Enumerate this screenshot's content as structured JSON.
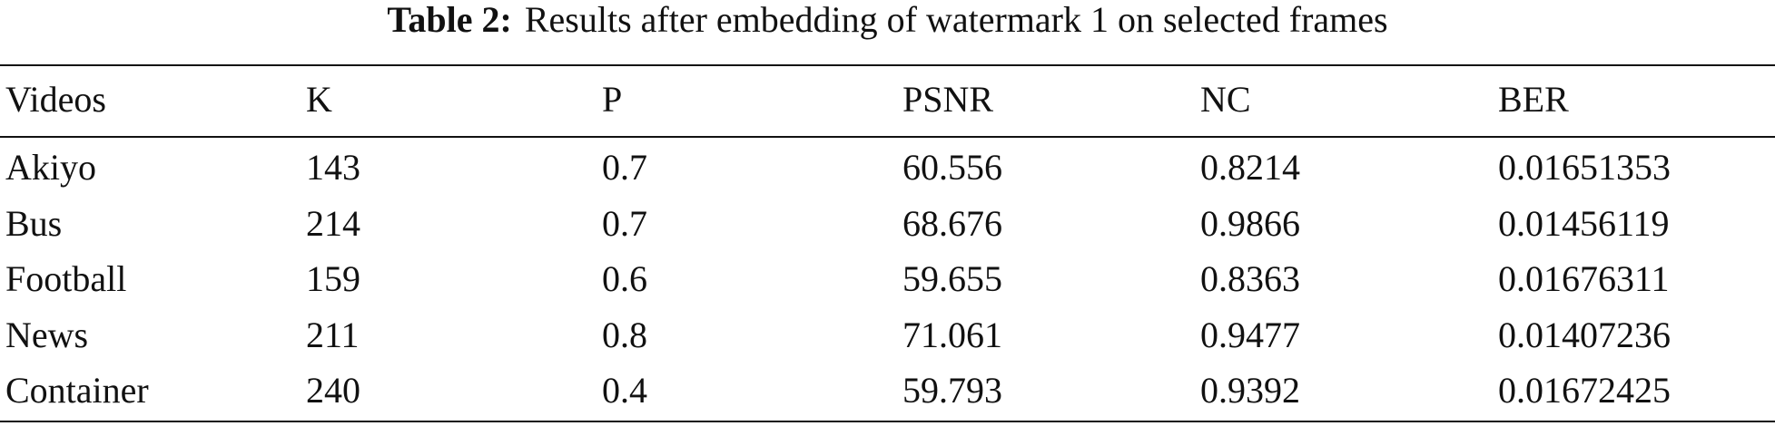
{
  "caption": {
    "label": "Table 2:",
    "text": "Results after embedding of watermark 1 on selected frames"
  },
  "table": {
    "header": [
      "Videos",
      "K",
      "P",
      "PSNR",
      "NC",
      "BER"
    ],
    "rows": [
      [
        "Akiyo",
        "143",
        "0.7",
        "60.556",
        "0.8214",
        "0.01651353"
      ],
      [
        "Bus",
        "214",
        "0.7",
        "68.676",
        "0.9866",
        "0.01456119"
      ],
      [
        "Football",
        "159",
        "0.6",
        "59.655",
        "0.8363",
        "0.01676311"
      ],
      [
        "News",
        "211",
        "0.8",
        "71.061",
        "0.9477",
        "0.01407236"
      ],
      [
        "Container",
        "240",
        "0.4",
        "59.793",
        "0.9392",
        "0.01672425"
      ]
    ]
  }
}
